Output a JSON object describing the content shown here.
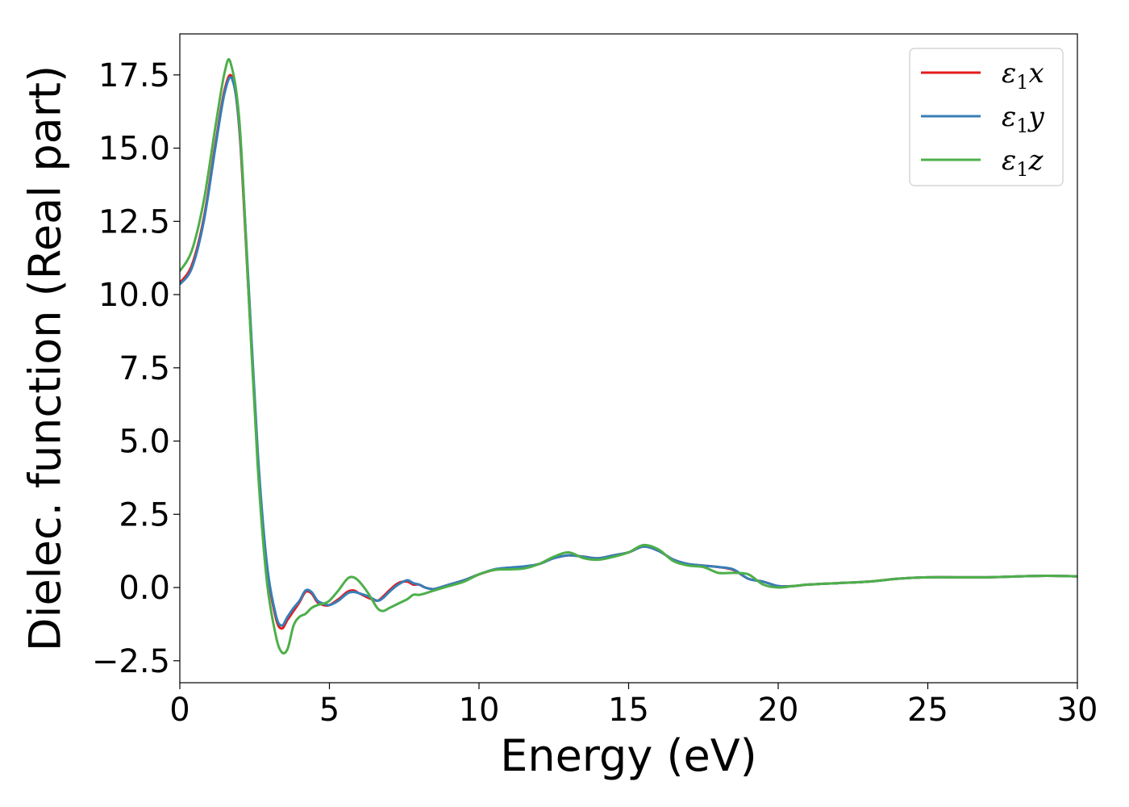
{
  "chart_data": {
    "type": "line",
    "xlabel": "Energy (eV)",
    "ylabel": "Dielec. function (Real part)",
    "xlim": [
      0,
      30
    ],
    "ylim": [
      -3.25,
      18.9
    ],
    "xticks": [
      "0",
      "5",
      "10",
      "15",
      "20",
      "25",
      "30"
    ],
    "xtick_values": [
      0,
      5,
      10,
      15,
      20,
      25,
      30
    ],
    "yticks": [
      "−2.5",
      "0.0",
      "2.5",
      "5.0",
      "7.5",
      "10.0",
      "12.5",
      "15.0",
      "17.5"
    ],
    "ytick_values": [
      -2.5,
      0,
      2.5,
      5,
      7.5,
      10,
      12.5,
      15,
      17.5
    ],
    "grid": false,
    "legend_position": "top-right",
    "series": [
      {
        "name": "ε1x",
        "legend_main": "ε",
        "legend_sub": "1",
        "legend_tail": "x",
        "color": "#e41a1c",
        "x": [
          0,
          0.4,
          0.8,
          1.2,
          1.5,
          1.75,
          2.0,
          2.3,
          2.6,
          2.9,
          3.2,
          3.4,
          3.6,
          3.8,
          4.0,
          4.2,
          4.4,
          4.6,
          4.8,
          5.0,
          5.3,
          5.6,
          5.8,
          6.0,
          6.3,
          6.6,
          6.8,
          7.0,
          7.3,
          7.6,
          7.8,
          8.0,
          8.2,
          8.5,
          9.0,
          9.5,
          10.0,
          10.5,
          11.0,
          11.5,
          12.0,
          12.5,
          13.0,
          13.5,
          14.0,
          14.5,
          15.0,
          15.5,
          16.0,
          16.5,
          17.0,
          17.5,
          18.0,
          18.5,
          19.0,
          19.5,
          20.0,
          20.5,
          21.0,
          22.0,
          23.0,
          24.0,
          25.0,
          26.0,
          27.0,
          28.0,
          29.0,
          30.0
        ],
        "y": [
          10.4,
          11.0,
          12.6,
          15.2,
          17.0,
          17.4,
          15.5,
          10.0,
          4.5,
          0.8,
          -1.0,
          -1.4,
          -1.1,
          -0.8,
          -0.5,
          -0.15,
          -0.2,
          -0.5,
          -0.6,
          -0.6,
          -0.4,
          -0.15,
          -0.1,
          -0.2,
          -0.35,
          -0.45,
          -0.3,
          -0.1,
          0.15,
          0.2,
          0.1,
          0.1,
          0.0,
          -0.05,
          0.1,
          0.25,
          0.45,
          0.6,
          0.65,
          0.7,
          0.8,
          1.0,
          1.1,
          1.05,
          1.0,
          1.1,
          1.2,
          1.4,
          1.25,
          0.95,
          0.8,
          0.75,
          0.7,
          0.6,
          0.3,
          0.2,
          0.05,
          0.05,
          0.1,
          0.15,
          0.2,
          0.3,
          0.35,
          0.35,
          0.35,
          0.38,
          0.4,
          0.38
        ]
      },
      {
        "name": "ε1y",
        "legend_main": "ε",
        "legend_sub": "1",
        "legend_tail": "y",
        "color": "#377eb8",
        "x": [
          0,
          0.4,
          0.8,
          1.2,
          1.5,
          1.75,
          2.0,
          2.3,
          2.6,
          2.9,
          3.2,
          3.4,
          3.6,
          3.8,
          4.0,
          4.2,
          4.4,
          4.6,
          4.8,
          5.0,
          5.3,
          5.6,
          5.8,
          6.0,
          6.3,
          6.6,
          6.8,
          7.0,
          7.3,
          7.6,
          7.8,
          8.0,
          8.2,
          8.5,
          9.0,
          9.5,
          10.0,
          10.5,
          11.0,
          11.5,
          12.0,
          12.5,
          13.0,
          13.5,
          14.0,
          14.5,
          15.0,
          15.5,
          16.0,
          16.5,
          17.0,
          17.5,
          18.0,
          18.5,
          19.0,
          19.5,
          20.0,
          20.5,
          21.0,
          22.0,
          23.0,
          24.0,
          25.0,
          26.0,
          27.0,
          28.0,
          29.0,
          30.0
        ],
        "y": [
          10.35,
          10.9,
          12.5,
          15.1,
          16.9,
          17.35,
          15.6,
          10.3,
          4.7,
          0.9,
          -0.9,
          -1.3,
          -1.0,
          -0.7,
          -0.45,
          -0.1,
          -0.15,
          -0.45,
          -0.55,
          -0.6,
          -0.45,
          -0.2,
          -0.15,
          -0.2,
          -0.3,
          -0.45,
          -0.35,
          -0.15,
          0.1,
          0.25,
          0.15,
          0.1,
          0.0,
          -0.05,
          0.1,
          0.25,
          0.45,
          0.62,
          0.68,
          0.72,
          0.8,
          1.0,
          1.1,
          1.05,
          1.0,
          1.1,
          1.2,
          1.4,
          1.25,
          0.95,
          0.8,
          0.75,
          0.7,
          0.62,
          0.3,
          0.2,
          0.05,
          0.05,
          0.1,
          0.15,
          0.2,
          0.3,
          0.35,
          0.35,
          0.35,
          0.38,
          0.4,
          0.38
        ]
      },
      {
        "name": "ε1z",
        "legend_main": "ε",
        "legend_sub": "1",
        "legend_tail": "z",
        "color": "#4daf4a",
        "x": [
          0,
          0.4,
          0.8,
          1.2,
          1.5,
          1.7,
          2.0,
          2.3,
          2.6,
          2.9,
          3.2,
          3.4,
          3.6,
          3.8,
          4.0,
          4.2,
          4.4,
          4.6,
          4.8,
          5.0,
          5.3,
          5.6,
          5.8,
          6.0,
          6.3,
          6.6,
          6.8,
          7.0,
          7.3,
          7.6,
          7.8,
          8.0,
          8.2,
          8.5,
          9.0,
          9.5,
          10.0,
          10.5,
          11.0,
          11.5,
          12.0,
          12.5,
          13.0,
          13.5,
          14.0,
          14.5,
          15.0,
          15.5,
          16.0,
          16.5,
          17.0,
          17.5,
          18.0,
          18.5,
          19.0,
          19.5,
          20.0,
          20.5,
          21.0,
          22.0,
          23.0,
          24.0,
          25.0,
          26.0,
          27.0,
          28.0,
          29.0,
          30.0
        ],
        "y": [
          10.8,
          11.5,
          13.2,
          15.8,
          17.6,
          17.9,
          15.8,
          10.0,
          4.2,
          0.3,
          -1.6,
          -2.2,
          -2.1,
          -1.3,
          -1.0,
          -0.9,
          -0.7,
          -0.6,
          -0.55,
          -0.45,
          -0.1,
          0.3,
          0.35,
          0.2,
          -0.2,
          -0.7,
          -0.8,
          -0.7,
          -0.55,
          -0.4,
          -0.25,
          -0.25,
          -0.2,
          -0.1,
          0.05,
          0.2,
          0.45,
          0.6,
          0.62,
          0.65,
          0.8,
          1.05,
          1.2,
          1.0,
          0.95,
          1.05,
          1.2,
          1.45,
          1.3,
          0.9,
          0.75,
          0.7,
          0.5,
          0.5,
          0.45,
          0.1,
          0.0,
          0.05,
          0.1,
          0.15,
          0.2,
          0.3,
          0.35,
          0.35,
          0.35,
          0.38,
          0.4,
          0.38
        ]
      }
    ]
  }
}
